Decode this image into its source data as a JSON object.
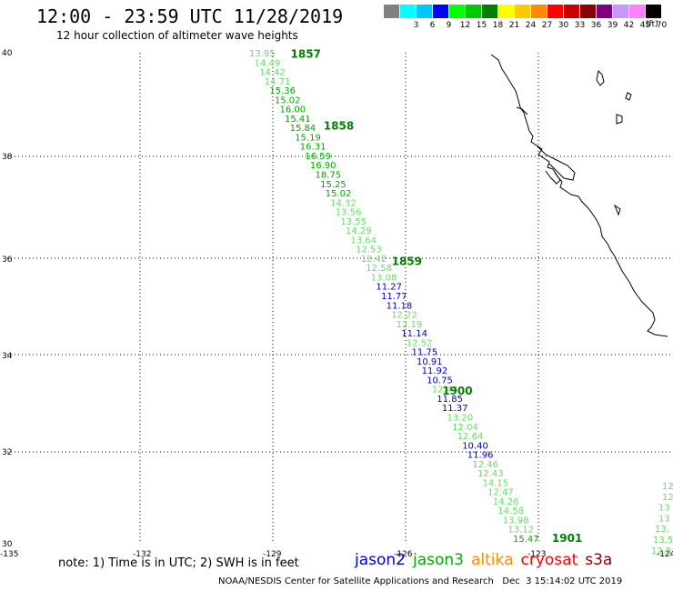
{
  "title": "12:00 - 23:59 UTC 11/28/2019",
  "subtitle": "12 hour collection of altimeter wave heights",
  "colorbar": {
    "unit": "(ft)",
    "items": [
      {
        "label": "",
        "color": "#808080"
      },
      {
        "label": "3",
        "color": "#00ffff"
      },
      {
        "label": "6",
        "color": "#00c8ff"
      },
      {
        "label": "9",
        "color": "#0000ff"
      },
      {
        "label": "12",
        "color": "#00ff00"
      },
      {
        "label": "15",
        "color": "#00c800"
      },
      {
        "label": "18",
        "color": "#008000"
      },
      {
        "label": "21",
        "color": "#ffff00"
      },
      {
        "label": "24",
        "color": "#ffc800"
      },
      {
        "label": "27",
        "color": "#ff8c00"
      },
      {
        "label": "30",
        "color": "#ff0000"
      },
      {
        "label": "33",
        "color": "#c80000"
      },
      {
        "label": "36",
        "color": "#8b0000"
      },
      {
        "label": "39",
        "color": "#800080"
      },
      {
        "label": "42",
        "color": "#c896ff"
      },
      {
        "label": "45",
        "color": "#ff80ff"
      },
      {
        "label": "70",
        "color": "#000000"
      }
    ]
  },
  "map": {
    "lon_range": [
      -135,
      -124
    ],
    "lat_range": [
      30,
      40
    ],
    "lon_ticks": [
      "-135",
      "-132",
      "-129",
      "-126",
      "-123",
      "-124"
    ],
    "lat_ticks": [
      "40",
      "38",
      "36",
      "34",
      "32",
      "30"
    ],
    "colors": {
      "jason2": "#0000c8",
      "jason3": "#00aa00",
      "jason3_light": "#66dd66",
      "time": "#008000"
    },
    "time_labels": [
      {
        "text": "1857",
        "lat": 39.92,
        "lon": -128.55
      },
      {
        "text": "1858",
        "lat": 38.45,
        "lon": -127.8
      },
      {
        "text": "1859",
        "lat": 35.68,
        "lon": -126.25
      },
      {
        "text": "1900",
        "lat": 33.03,
        "lon": -125.1
      },
      {
        "text": "1901",
        "lat": 30.02,
        "lon": -122.6
      }
    ],
    "track": [
      {
        "v": "13.95",
        "sat": "jason3l"
      },
      {
        "v": "14.49",
        "sat": "jason3l"
      },
      {
        "v": "14.42",
        "sat": "jason3l"
      },
      {
        "v": "14.71",
        "sat": "jason3l"
      },
      {
        "v": "15.36",
        "sat": "jason3"
      },
      {
        "v": "15.02",
        "sat": "jason3"
      },
      {
        "v": "16.00",
        "sat": "jason3"
      },
      {
        "v": "15.41",
        "sat": "jason3"
      },
      {
        "v": "15.84",
        "sat": "jason3"
      },
      {
        "v": "15.19",
        "sat": "jason3"
      },
      {
        "v": "16.31",
        "sat": "jason3"
      },
      {
        "v": "16.59",
        "sat": "jason3"
      },
      {
        "v": "16.90",
        "sat": "jason3"
      },
      {
        "v": "18.75",
        "sat": "jason3"
      },
      {
        "v": "15.25",
        "sat": "jason3"
      },
      {
        "v": "15.02",
        "sat": "jason3"
      },
      {
        "v": "14.32",
        "sat": "jason3l"
      },
      {
        "v": "13.56",
        "sat": "jason3l"
      },
      {
        "v": "13.55",
        "sat": "jason3l"
      },
      {
        "v": "14.29",
        "sat": "jason3l"
      },
      {
        "v": "13.64",
        "sat": "jason3l"
      },
      {
        "v": "12.53",
        "sat": "jason3l"
      },
      {
        "v": "12.42",
        "sat": "jason3l"
      },
      {
        "v": "12.58",
        "sat": "jason3l"
      },
      {
        "v": "13.08",
        "sat": "jason3l"
      },
      {
        "v": "11.27",
        "sat": "jason2"
      },
      {
        "v": "11.77",
        "sat": "jason2"
      },
      {
        "v": "11.18",
        "sat": "jason2"
      },
      {
        "v": "12.22",
        "sat": "jason3l"
      },
      {
        "v": "12.19",
        "sat": "jason3l"
      },
      {
        "v": "11.14",
        "sat": "jason2"
      },
      {
        "v": "12.52",
        "sat": "jason3l"
      },
      {
        "v": "11.75",
        "sat": "jason2"
      },
      {
        "v": "10.91",
        "sat": "jason2"
      },
      {
        "v": "11.92",
        "sat": "jason2"
      },
      {
        "v": "10.75",
        "sat": "jason2"
      },
      {
        "v": "12.44",
        "sat": "jason3l"
      },
      {
        "v": "11.85",
        "sat": "jason2"
      },
      {
        "v": "11.37",
        "sat": "jason2"
      },
      {
        "v": "13.20",
        "sat": "jason3l"
      },
      {
        "v": "12.04",
        "sat": "jason3l"
      },
      {
        "v": "12.64",
        "sat": "jason3l"
      },
      {
        "v": "10.40",
        "sat": "jason2"
      },
      {
        "v": "11.96",
        "sat": "jason2"
      },
      {
        "v": "12.46",
        "sat": "jason3l"
      },
      {
        "v": "12.43",
        "sat": "jason3l"
      },
      {
        "v": "14.15",
        "sat": "jason3l"
      },
      {
        "v": "12.47",
        "sat": "jason3l"
      },
      {
        "v": "14.26",
        "sat": "jason3l"
      },
      {
        "v": "14.58",
        "sat": "jason3l"
      },
      {
        "v": "13.98",
        "sat": "jason3l"
      },
      {
        "v": "13.12",
        "sat": "jason3l"
      },
      {
        "v": "15.47",
        "sat": "jason3"
      }
    ],
    "edge_values": [
      "12",
      "12",
      "13",
      "13",
      "13.",
      "13.5",
      "12.8"
    ]
  },
  "note": "note: 1) Time is in UTC; 2) SWH is in feet",
  "satellites": [
    {
      "name": "jason2",
      "color": "#0000c8"
    },
    {
      "name": "jason3",
      "color": "#00aa00"
    },
    {
      "name": "altika",
      "color": "#ff8c00"
    },
    {
      "name": "cryosat",
      "color": "#ff0000"
    },
    {
      "name": "s3a",
      "color": "#8b0000"
    }
  ],
  "credit": "NOAA/NESDIS Center for Satellite Applications and Research   Dec  3 15:14:02 UTC 2019"
}
